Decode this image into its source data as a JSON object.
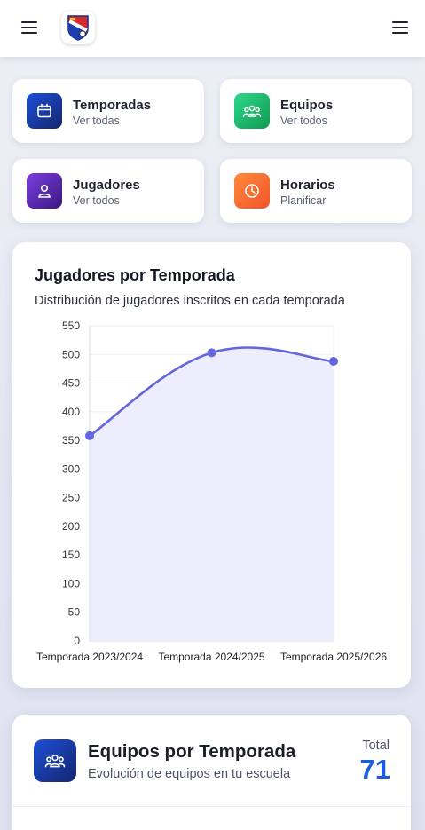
{
  "header": {
    "menu_left_icon": "hamburger-icon",
    "menu_right_icon": "hamburger-icon",
    "logo_icon": "club-crest-logo"
  },
  "tiles": [
    {
      "title": "Temporadas",
      "subtitle": "Ver todas",
      "icon": "calendar-icon",
      "color": "#1d4fd8"
    },
    {
      "title": "Equipos",
      "subtitle": "Ver todos",
      "icon": "users-group-icon",
      "color": "#16b86a"
    },
    {
      "title": "Jugadores",
      "subtitle": "Ver todos",
      "icon": "user-icon",
      "color": "#5a2bb8"
    },
    {
      "title": "Horarios",
      "subtitle": "Planificar",
      "icon": "clock-icon",
      "color": "#f56a30"
    }
  ],
  "chart_card": {
    "title": "Jugadores por Temporada",
    "subtitle": "Distribución de jugadores inscritos en cada temporada"
  },
  "chart_data": {
    "type": "area",
    "title": "Jugadores por Temporada",
    "subtitle": "Distribución de jugadores inscritos en cada temporada",
    "categories": [
      "Temporada 2023/2024",
      "Temporada 2024/2025",
      "Temporada 2025/2026"
    ],
    "values": [
      358,
      503,
      488
    ],
    "ylim": [
      0,
      550
    ],
    "yticks": [
      0,
      50,
      100,
      150,
      200,
      250,
      300,
      350,
      400,
      450,
      500,
      550
    ],
    "grid": true,
    "line_color": "#6366dc",
    "fill_color": "#eeedfd"
  },
  "equipos_card": {
    "title": "Equipos por Temporada",
    "subtitle": "Evolución de equipos en tu escuela",
    "total_label": "Total",
    "total_value": "71",
    "icon": "users-group-icon",
    "accent": "#1d5be0"
  }
}
